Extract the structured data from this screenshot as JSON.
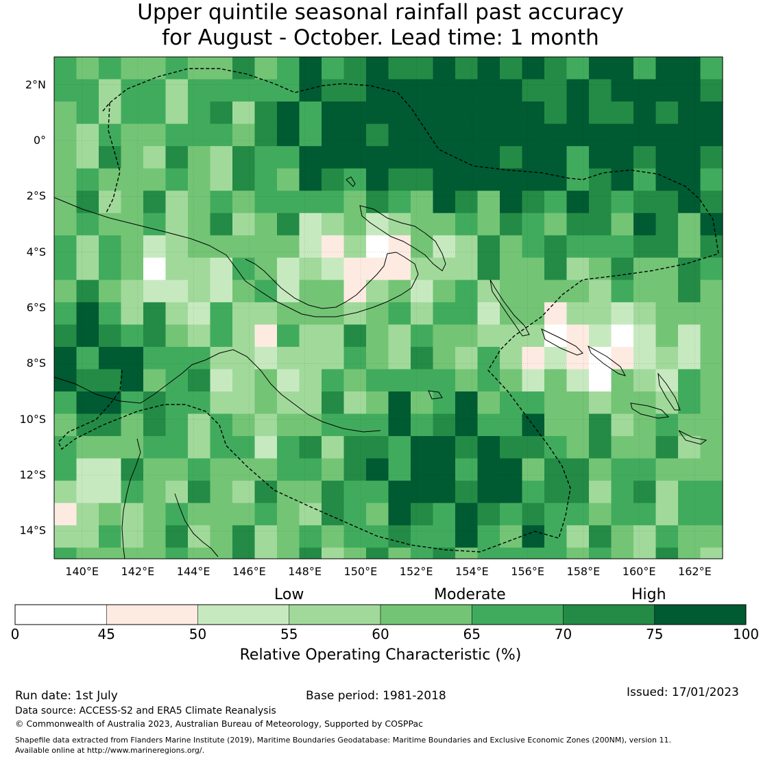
{
  "title": {
    "line1": "Upper quintile seasonal rainfall past accuracy",
    "line2": "for August - October. Lead time: 1 month"
  },
  "map": {
    "lat_labels": [
      "2°N",
      "0°",
      "2°S",
      "4°S",
      "6°S",
      "8°S",
      "10°S",
      "12°S",
      "14°S"
    ],
    "lat_values": [
      2,
      0,
      -2,
      -4,
      -6,
      -8,
      -10,
      -12,
      -14
    ],
    "lon_labels": [
      "140°E",
      "142°E",
      "144°E",
      "146°E",
      "148°E",
      "150°E",
      "152°E",
      "154°E",
      "156°E",
      "158°E",
      "160°E",
      "162°E"
    ],
    "lon_values": [
      140,
      142,
      144,
      146,
      148,
      150,
      152,
      154,
      156,
      158,
      160,
      162
    ],
    "lon_range": [
      139,
      163
    ],
    "lat_range": [
      -15,
      3
    ],
    "cell_size_deg": 0.8,
    "land_color": "#000000",
    "eez_boundary_style": "dashed"
  },
  "colorbar": {
    "category_labels": [
      "Low",
      "Moderate",
      "High"
    ],
    "ticks": [
      "0",
      "45",
      "50",
      "55",
      "60",
      "65",
      "70",
      "75",
      "100"
    ],
    "bins": [
      {
        "from": 0,
        "to": 45,
        "color": "#ffffff"
      },
      {
        "from": 45,
        "to": 50,
        "color": "#fdebe2"
      },
      {
        "from": 50,
        "to": 55,
        "color": "#c7e9c0"
      },
      {
        "from": 55,
        "to": 60,
        "color": "#a1d99b"
      },
      {
        "from": 60,
        "to": 65,
        "color": "#74c476"
      },
      {
        "from": 65,
        "to": 70,
        "color": "#41ab5d"
      },
      {
        "from": 70,
        "to": 75,
        "color": "#238b45"
      },
      {
        "from": 75,
        "to": 100,
        "color": "#005a32"
      }
    ],
    "title": "Relative Operating Characteristic (%)"
  },
  "footer": {
    "run_date": "Run date: 1st July",
    "base_period": "Base period: 1981-2018",
    "issued": "Issued: 17/01/2023",
    "data_source": "Data source: ACCESS-S2 and ERA5 Climate Reanalysis",
    "copyright": "© Commonwealth of Australia 2023, Australian Bureau of Meteorology, Supported by COSPPac",
    "shapefile_line1": "Shapefile data extracted from Flanders Marine Institute (2019), Maritime Boundaries Geodatabase: Maritime Boundaries and Exclusive Economic Zones (200NM), version 11.",
    "shapefile_line2": "Available online at http://www.marineregions.org/."
  }
}
